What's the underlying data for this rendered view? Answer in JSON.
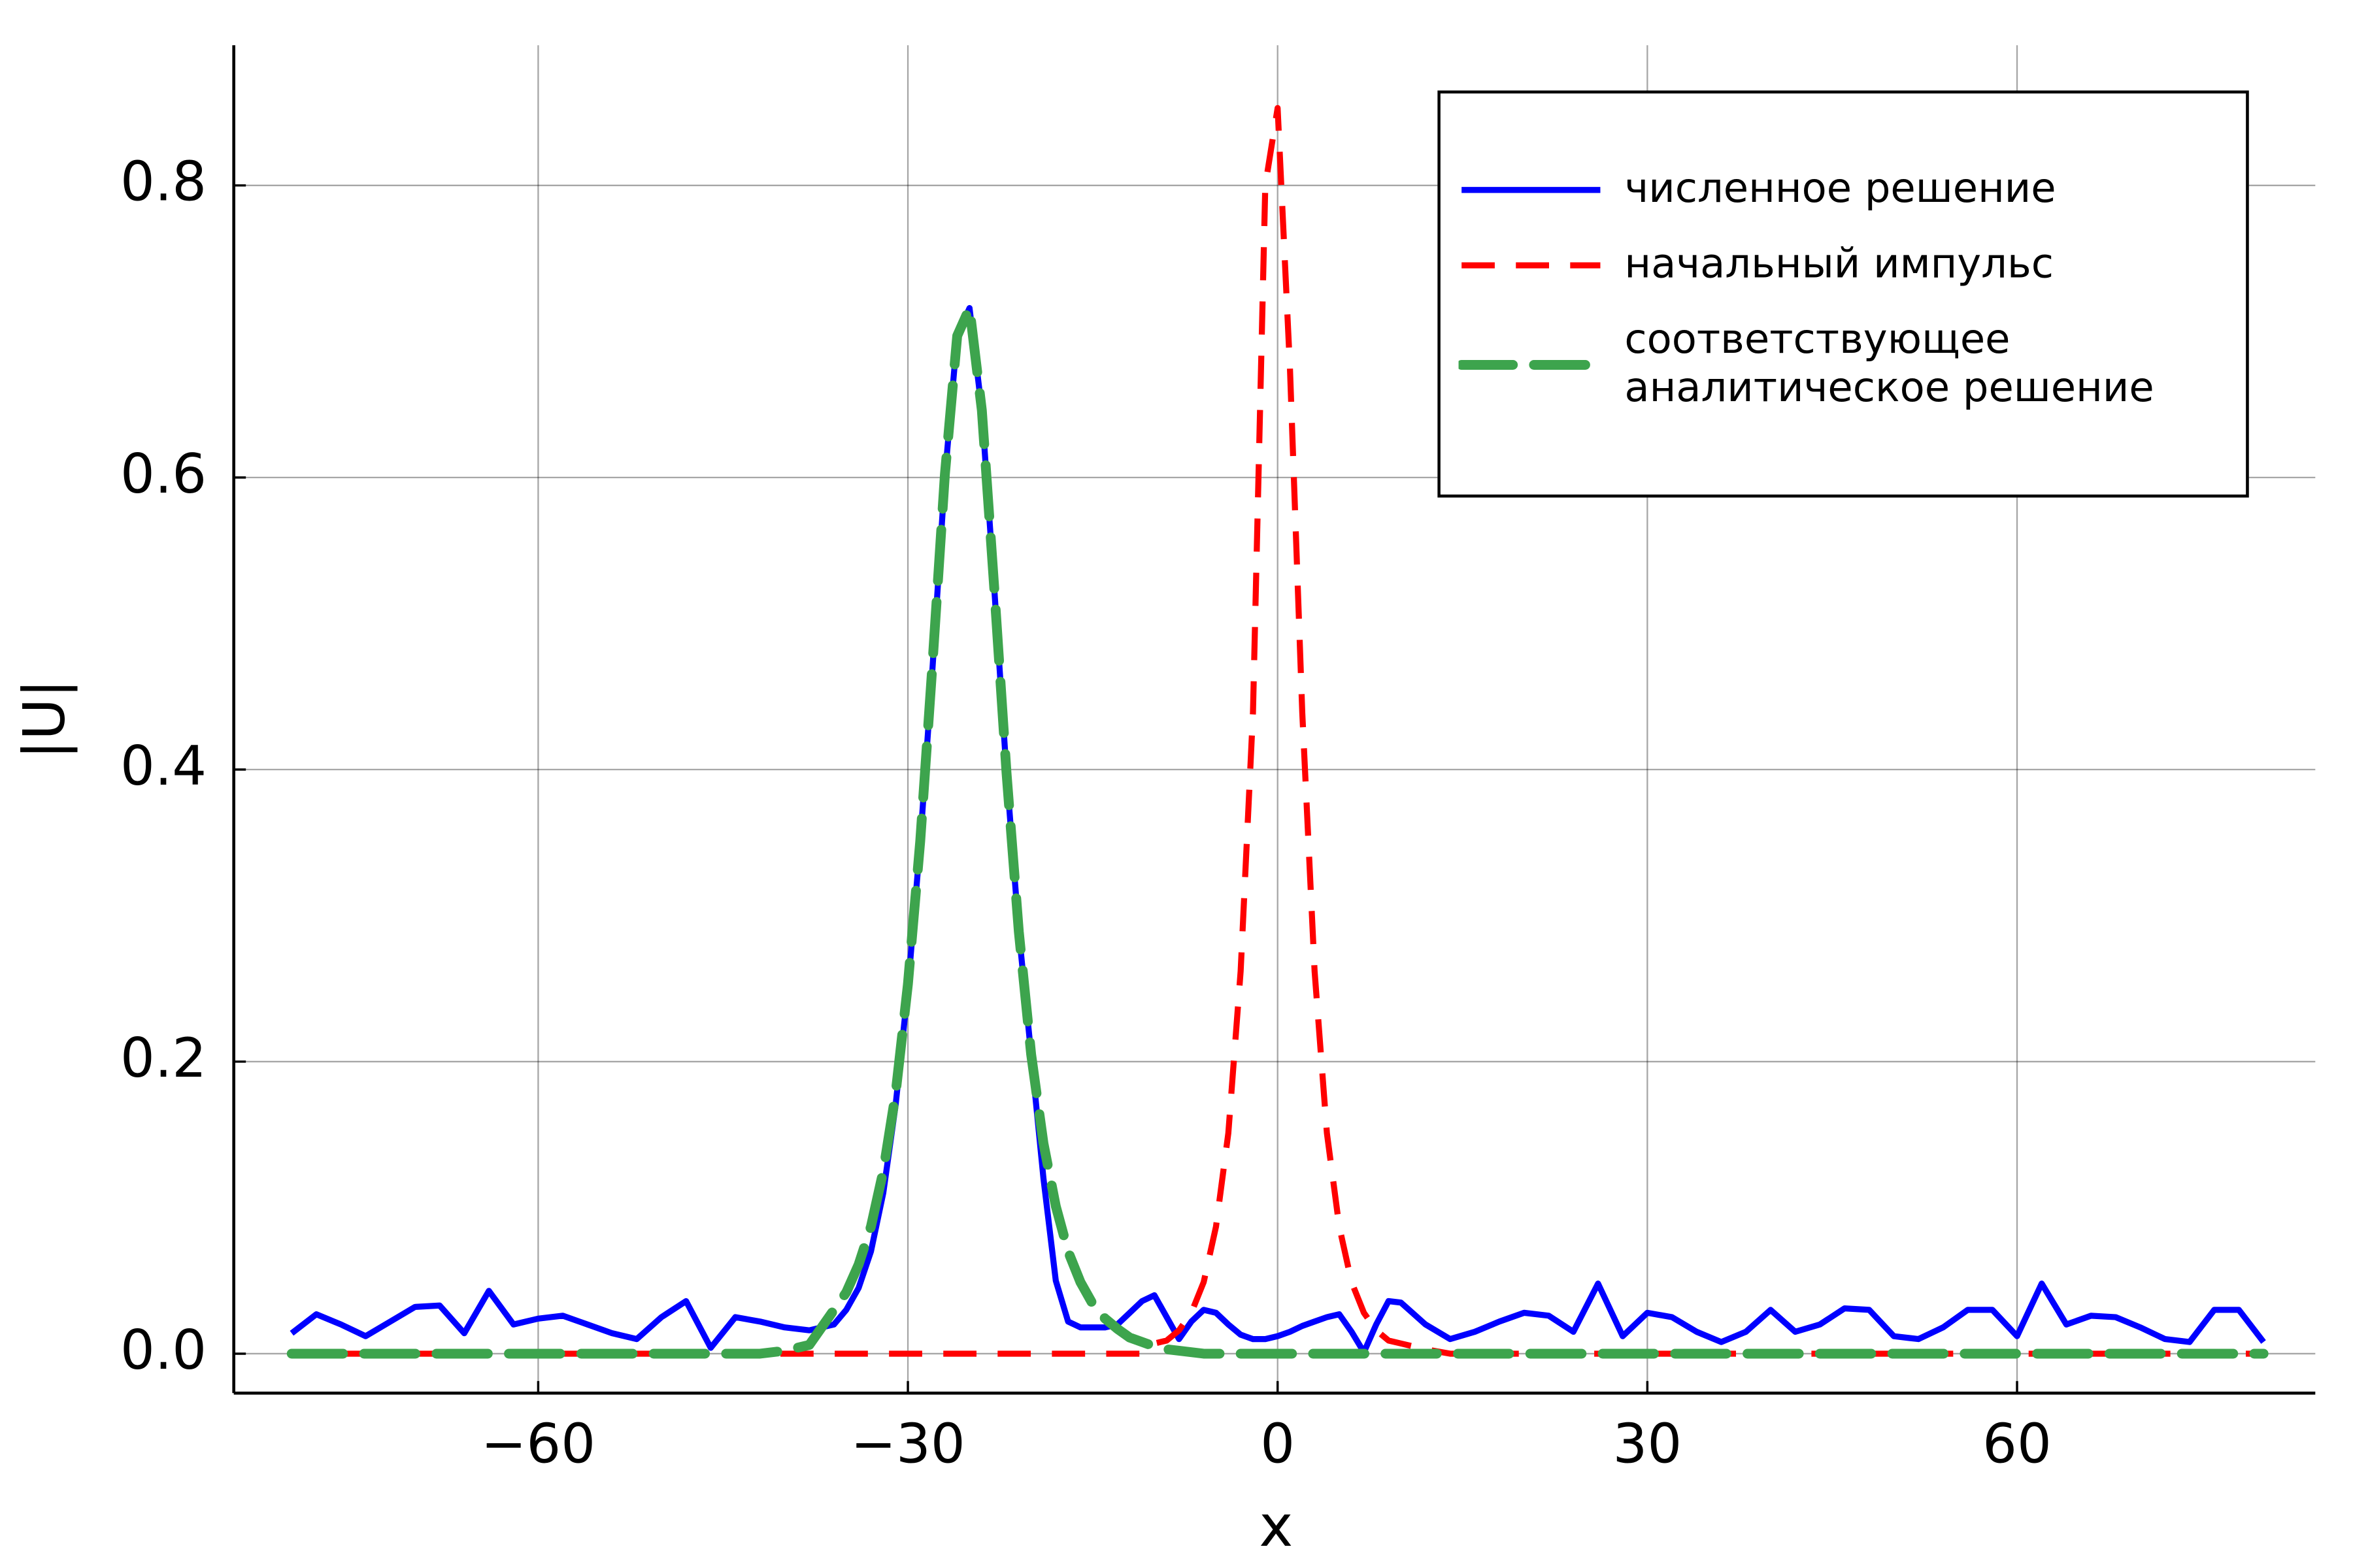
{
  "chart_data": {
    "type": "line",
    "xlabel": "x",
    "ylabel": "|U|",
    "x": [
      -80,
      -78,
      -76,
      -74,
      -72,
      -70,
      -68,
      -66,
      -64,
      -62,
      -60,
      -58,
      -56,
      -54,
      -52,
      -50,
      -48,
      -46,
      -44,
      -42,
      -40,
      -38,
      -36,
      -35,
      -34,
      -33,
      -32,
      -31,
      -30,
      -29,
      -28,
      -27,
      -26,
      -25,
      -24,
      -23,
      -22,
      -21,
      -20,
      -19,
      -18,
      -17,
      -16,
      -15,
      -14,
      -13,
      -12,
      -11,
      -10,
      -9,
      -8,
      -7,
      -6,
      -5,
      -4,
      -3,
      -2,
      -1,
      0,
      1,
      2,
      3,
      4,
      5,
      6,
      7,
      8,
      9,
      10,
      12,
      14,
      16,
      18,
      20,
      22,
      24,
      26,
      28,
      30,
      32,
      34,
      36,
      38,
      40,
      42,
      44,
      46,
      48,
      50,
      52,
      54,
      56,
      58,
      60,
      62,
      64,
      66,
      68,
      70,
      72,
      74,
      76,
      78,
      80
    ],
    "series": [
      {
        "name": "численное решение",
        "color": "#0000ff",
        "linestyle": "solid",
        "values": [
          0.014,
          0.027,
          0.02,
          0.012,
          0.022,
          0.032,
          0.033,
          0.014,
          0.043,
          0.02,
          0.024,
          0.026,
          0.02,
          0.014,
          0.01,
          0.025,
          0.036,
          0.004,
          0.025,
          0.022,
          0.018,
          0.016,
          0.02,
          0.03,
          0.045,
          0.07,
          0.11,
          0.17,
          0.25,
          0.35,
          0.47,
          0.6,
          0.697,
          0.716,
          0.646,
          0.525,
          0.398,
          0.289,
          0.205,
          0.12,
          0.05,
          0.022,
          0.018,
          0.018,
          0.018,
          0.02,
          0.028,
          0.036,
          0.04,
          0.025,
          0.01,
          0.022,
          0.03,
          0.028,
          0.02,
          0.013,
          0.01,
          0.01,
          0.012,
          0.015,
          0.019,
          0.022,
          0.025,
          0.027,
          0.015,
          0.001,
          0.02,
          0.036,
          0.035,
          0.02,
          0.01,
          0.015,
          0.022,
          0.028,
          0.026,
          0.015,
          0.048,
          0.012,
          0.028,
          0.025,
          0.015,
          0.008,
          0.015,
          0.03,
          0.015,
          0.02,
          0.031,
          0.03,
          0.012,
          0.01,
          0.018,
          0.03,
          0.03,
          0.012,
          0.048,
          0.02,
          0.026,
          0.025,
          0.018,
          0.01,
          0.008,
          0.03,
          0.03,
          0.008
        ]
      },
      {
        "name": "начальный импульс",
        "color": "#ff0000",
        "linestyle": "dash",
        "values": [
          0,
          0,
          0,
          0,
          0,
          0,
          0,
          0,
          0,
          0,
          0,
          0,
          0,
          0,
          0,
          0,
          0,
          0,
          0,
          0,
          0,
          0,
          0,
          0,
          0,
          0,
          0,
          0,
          0,
          0,
          0,
          0,
          0,
          0,
          0,
          0,
          0,
          0,
          0,
          0,
          0,
          0,
          0,
          0,
          0,
          0,
          0,
          0,
          0.007,
          0.009,
          0.016,
          0.028,
          0.049,
          0.087,
          0.151,
          0.262,
          0.439,
          0.8,
          0.853,
          0.675,
          0.439,
          0.262,
          0.151,
          0.087,
          0.049,
          0.028,
          0.016,
          0.009,
          0.007,
          0.003,
          0,
          0,
          0,
          0,
          0,
          0,
          0,
          0,
          0,
          0,
          0,
          0,
          0,
          0,
          0,
          0,
          0,
          0,
          0,
          0,
          0,
          0,
          0,
          0,
          0,
          0,
          0,
          0,
          0,
          0,
          0,
          0,
          0,
          0
        ]
      },
      {
        "name": "соответствующее\nаналитическое решение",
        "color": "#3da44d",
        "linestyle": "dashdot",
        "values": [
          0,
          0,
          0,
          0,
          0,
          0,
          0,
          0,
          0,
          0,
          0,
          0,
          0,
          0,
          0,
          0,
          0,
          0,
          0,
          0,
          0.002,
          0.006,
          0.03,
          0.042,
          0.061,
          0.087,
          0.125,
          0.178,
          0.253,
          0.351,
          0.473,
          0.602,
          0.697,
          0.716,
          0.646,
          0.525,
          0.398,
          0.289,
          0.205,
          0.144,
          0.101,
          0.07,
          0.049,
          0.034,
          0.024,
          0.017,
          0.011,
          0.008,
          0.005,
          0.003,
          0.002,
          0.001,
          0,
          0,
          0,
          0,
          0,
          0,
          0,
          0,
          0,
          0,
          0,
          0,
          0,
          0,
          0,
          0,
          0,
          0,
          0,
          0,
          0,
          0,
          0,
          0,
          0,
          0,
          0,
          0,
          0,
          0,
          0,
          0,
          0,
          0,
          0,
          0,
          0,
          0,
          0,
          0,
          0,
          0,
          0,
          0,
          0,
          0,
          0,
          0,
          0,
          0,
          0,
          0
        ]
      }
    ],
    "xlim": [
      -84.7,
      84.2
    ],
    "ylim": [
      -0.027,
      0.896
    ],
    "xticks": [
      {
        "value": -60,
        "label": "−60"
      },
      {
        "value": -30,
        "label": "−30"
      },
      0,
      30,
      60
    ],
    "yticks": [
      {
        "value": 0,
        "label": "0.0"
      },
      0.2,
      0.4,
      0.6,
      0.8
    ],
    "grid": true,
    "legend": "upper right"
  }
}
